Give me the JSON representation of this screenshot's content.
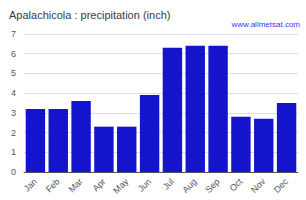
{
  "chart_data": {
    "type": "bar",
    "title": "Apalachicola : precipitation (inch)",
    "categories": [
      "Jan",
      "Feb",
      "Mar",
      "Apr",
      "May",
      "Jun",
      "Jul",
      "Aug",
      "Sep",
      "Oct",
      "Nov",
      "Dec"
    ],
    "values": [
      3.2,
      3.2,
      3.6,
      2.3,
      2.3,
      3.9,
      6.3,
      6.4,
      6.4,
      2.8,
      2.7,
      3.5
    ],
    "color": "#1414cc",
    "ylim": [
      0,
      7
    ],
    "yticks": [
      0,
      1,
      2,
      3,
      4,
      5,
      6,
      7
    ],
    "grid": true,
    "annotations": [
      "www.allmetsat.com"
    ]
  }
}
